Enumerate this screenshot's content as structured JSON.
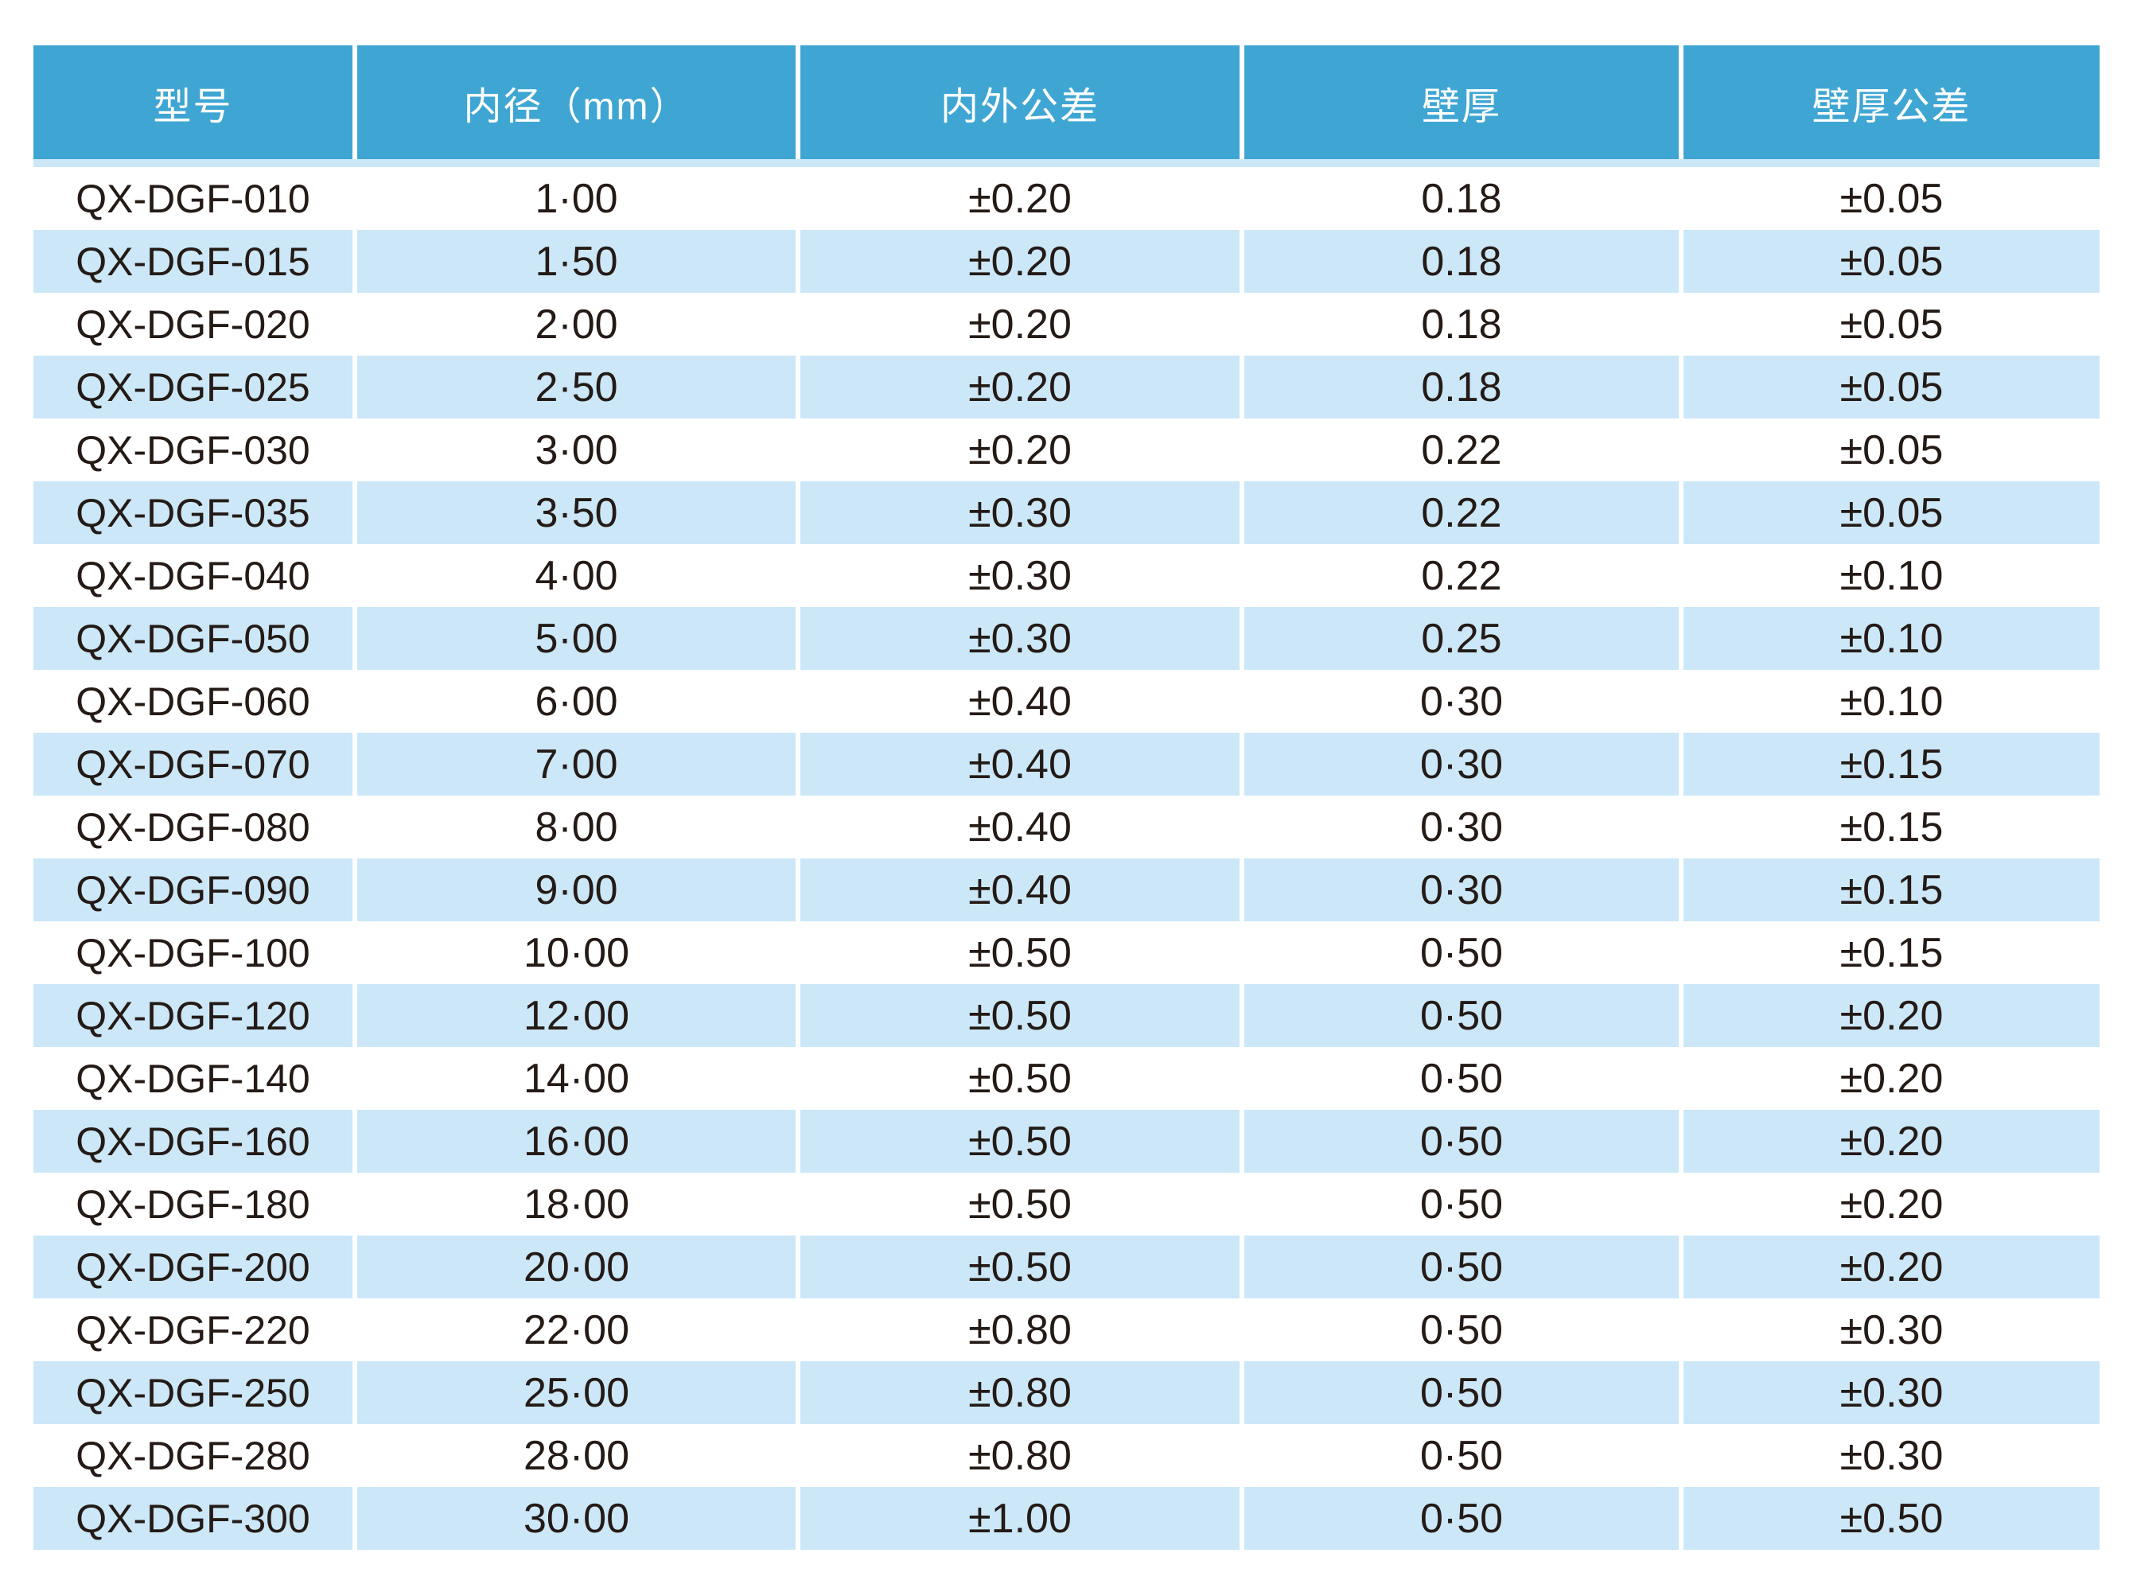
{
  "colors": {
    "header_bg": "#3FA6D3",
    "header_text": "#FFFFFF",
    "row_bg": "#FFFFFF",
    "row_alt_bg": "#CBE7F8",
    "cell_text": "#241A16"
  },
  "table": {
    "headers": [
      "型号",
      "内径（mm）",
      "内外公差",
      "壁厚",
      "壁厚公差"
    ],
    "rows": [
      [
        "QX-DGF-010",
        "1·00",
        "±0.20",
        "0.18",
        "±0.05"
      ],
      [
        "QX-DGF-015",
        "1·50",
        "±0.20",
        "0.18",
        "±0.05"
      ],
      [
        "QX-DGF-020",
        "2·00",
        "±0.20",
        "0.18",
        "±0.05"
      ],
      [
        "QX-DGF-025",
        "2·50",
        "±0.20",
        "0.18",
        "±0.05"
      ],
      [
        "QX-DGF-030",
        "3·00",
        "±0.20",
        "0.22",
        "±0.05"
      ],
      [
        "QX-DGF-035",
        "3·50",
        "±0.30",
        "0.22",
        "±0.05"
      ],
      [
        "QX-DGF-040",
        "4·00",
        "±0.30",
        "0.22",
        "±0.10"
      ],
      [
        "QX-DGF-050",
        "5·00",
        "±0.30",
        "0.25",
        "±0.10"
      ],
      [
        "QX-DGF-060",
        "6·00",
        "±0.40",
        "0·30",
        "±0.10"
      ],
      [
        "QX-DGF-070",
        "7·00",
        "±0.40",
        "0·30",
        "±0.15"
      ],
      [
        "QX-DGF-080",
        "8·00",
        "±0.40",
        "0·30",
        "±0.15"
      ],
      [
        "QX-DGF-090",
        "9·00",
        "±0.40",
        "0·30",
        "±0.15"
      ],
      [
        "QX-DGF-100",
        "10·00",
        "±0.50",
        "0·50",
        "±0.15"
      ],
      [
        "QX-DGF-120",
        "12·00",
        "±0.50",
        "0·50",
        "±0.20"
      ],
      [
        "QX-DGF-140",
        "14·00",
        "±0.50",
        "0·50",
        "±0.20"
      ],
      [
        "QX-DGF-160",
        "16·00",
        "±0.50",
        "0·50",
        "±0.20"
      ],
      [
        "QX-DGF-180",
        "18·00",
        "±0.50",
        "0·50",
        "±0.20"
      ],
      [
        "QX-DGF-200",
        "20·00",
        "±0.50",
        "0·50",
        "±0.20"
      ],
      [
        "QX-DGF-220",
        "22·00",
        "±0.80",
        "0·50",
        "±0.30"
      ],
      [
        "QX-DGF-250",
        "25·00",
        "±0.80",
        "0·50",
        "±0.30"
      ],
      [
        "QX-DGF-280",
        "28·00",
        "±0.80",
        "0·50",
        "±0.30"
      ],
      [
        "QX-DGF-300",
        "30·00",
        "±1.00",
        "0·50",
        "±0.50"
      ]
    ]
  }
}
